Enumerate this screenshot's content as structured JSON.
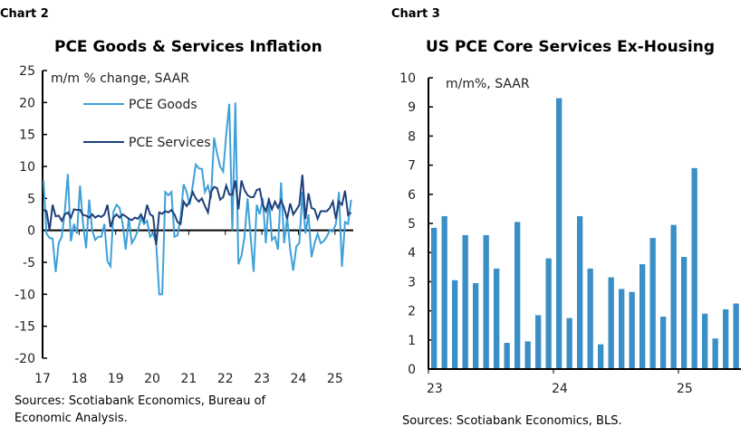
{
  "chart_data": [
    {
      "type": "line",
      "label": "Chart 2",
      "title": "PCE Goods & Services Inflation",
      "ylabel": "m/m % change, SAAR",
      "ylim": [
        -20,
        25
      ],
      "yticks": [
        25,
        20,
        15,
        10,
        5,
        0,
        -5,
        -10,
        -15,
        -20
      ],
      "xticks": [
        "17",
        "18",
        "19",
        "20",
        "21",
        "22",
        "23",
        "24",
        "25"
      ],
      "x_start": "2017-01",
      "x_end": "2025-06",
      "frequency": "monthly",
      "legend": "top-left",
      "colors": {
        "goods": "#3fa0d8",
        "services": "#1f3f7a"
      },
      "source": "Sources: Scotiabank Economics, Bureau of Economic Analysis.",
      "series": [
        {
          "name": "PCE Goods",
          "values": [
            7.8,
            -0.5,
            -1.2,
            -1.3,
            -6.5,
            -2,
            -1,
            3,
            8.8,
            -1.7,
            1,
            -0.5,
            7,
            1,
            -2.8,
            4.8,
            0,
            -1.5,
            -1,
            -1,
            1,
            -4.8,
            -5.6,
            3,
            4,
            3.5,
            1,
            -3,
            2,
            -2,
            -1.2,
            0,
            2,
            1,
            1.5,
            -1,
            -0.5,
            -2,
            -10,
            -10,
            6,
            5.5,
            6,
            -1,
            -0.8,
            2,
            7.2,
            6,
            4,
            7,
            10.3,
            9.7,
            9.6,
            6,
            7,
            5,
            14.5,
            12,
            10,
            9.2,
            15,
            19.8,
            0,
            20,
            -5.3,
            -4,
            -1,
            5,
            -1,
            -6.5,
            4,
            2.5,
            5,
            -2,
            5,
            -1.5,
            -1,
            -3,
            7.5,
            -2,
            2,
            -3,
            -6.3,
            -2.5,
            -2,
            6,
            -0.5,
            2.5,
            -4.2,
            -2,
            -0.5,
            -2,
            -1.7,
            -1,
            0,
            -0.2,
            1,
            6,
            -5.7,
            1.3,
            1,
            4.8
          ]
        },
        {
          "name": "PCE Services",
          "values": [
            3.2,
            3,
            0,
            4,
            2.2,
            2.3,
            1.5,
            2.5,
            2.8,
            2,
            3.3,
            3.2,
            3.2,
            2.4,
            2.3,
            2,
            2.5,
            2,
            2.3,
            2.1,
            2.5,
            4,
            0.5,
            2,
            2.5,
            2,
            2.5,
            2.2,
            1.8,
            1.6,
            2,
            1.8,
            2.5,
            1.5,
            4,
            2.5,
            2.2,
            -2.3,
            2.8,
            2.6,
            3,
            2.8,
            3.2,
            2.5,
            1.3,
            1,
            4.5,
            3.8,
            4.5,
            6,
            5,
            4.5,
            5,
            3.8,
            2.8,
            6,
            6.8,
            6.6,
            4.8,
            5.2,
            7,
            5.6,
            5.6,
            7.8,
            3.3,
            7.8,
            6.3,
            5.5,
            5.2,
            5.2,
            6.3,
            6.5,
            4,
            3,
            4.8,
            3.3,
            4.5,
            3.5,
            4.7,
            3.5,
            1.8,
            4.2,
            2.5,
            3.2,
            4,
            8.7,
            1.8,
            5.8,
            3.5,
            3.3,
            1.8,
            3,
            3,
            3,
            3.5,
            4.5,
            1.8,
            4.5,
            4,
            6.2,
            2.4,
            2.8
          ]
        }
      ]
    },
    {
      "type": "bar",
      "label": "Chart 3",
      "title": "US PCE Core Services Ex-Housing",
      "ylabel": "m/m%, SAAR",
      "ylim": [
        0,
        10
      ],
      "yticks": [
        0,
        1,
        2,
        3,
        4,
        5,
        6,
        7,
        8,
        9,
        10
      ],
      "xticks": [
        "23",
        "24",
        "25"
      ],
      "x_start": "2023-01",
      "x_end": "2025-06",
      "frequency": "monthly",
      "color": "#3a8fc6",
      "source": "Sources: Scotiabank Economics, BLS.",
      "values": [
        4.85,
        5.25,
        3.05,
        4.6,
        2.95,
        4.6,
        3.45,
        0.9,
        5.05,
        0.95,
        1.85,
        3.8,
        9.3,
        1.75,
        5.25,
        3.45,
        0.85,
        3.15,
        2.75,
        2.65,
        3.6,
        4.5,
        1.8,
        4.95,
        3.85,
        6.9,
        1.9,
        1.05,
        2.05,
        2.25
      ]
    }
  ]
}
